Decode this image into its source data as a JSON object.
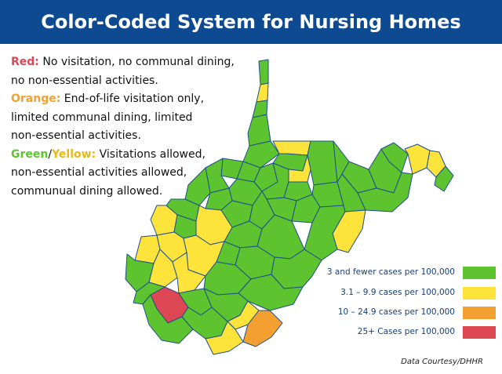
{
  "title": "Color-Coded System for Nursing Homes",
  "legend_text": {
    "red": {
      "keyword": "Red:",
      "line1": " No visitation, no communal dining,",
      "line2": "no non-essential activities."
    },
    "orange": {
      "keyword": "Orange:",
      "line1": " End-of-life visitation only,",
      "line2": "limited communal dining, limited",
      "line3": "non-essential activities."
    },
    "green_yellow": {
      "keyword_green": "Green",
      "slash": "/",
      "keyword_yellow": "Yellow:",
      "line1": " Visitations allowed,",
      "line2": "non-essential activities allowed,",
      "line3": "communual dining allowed."
    }
  },
  "key": [
    {
      "label": "3 and fewer cases per 100,000",
      "color": "#5dc42f"
    },
    {
      "label": "3.1 – 9.9 cases per 100,000",
      "color": "#fde33a"
    },
    {
      "label": "10 – 24.9 cases per 100,000",
      "color": "#f4a030"
    },
    {
      "label": "25+ Cases per 100,000",
      "color": "#dc4753"
    }
  ],
  "colors": {
    "banner": "#0d4a91",
    "red": "#dc4753",
    "orange": "#f4a030",
    "yellow": "#fde33a",
    "green": "#5dc42f",
    "border": "#1d4f8a"
  },
  "credit": "Data Courtesy/DHHR"
}
